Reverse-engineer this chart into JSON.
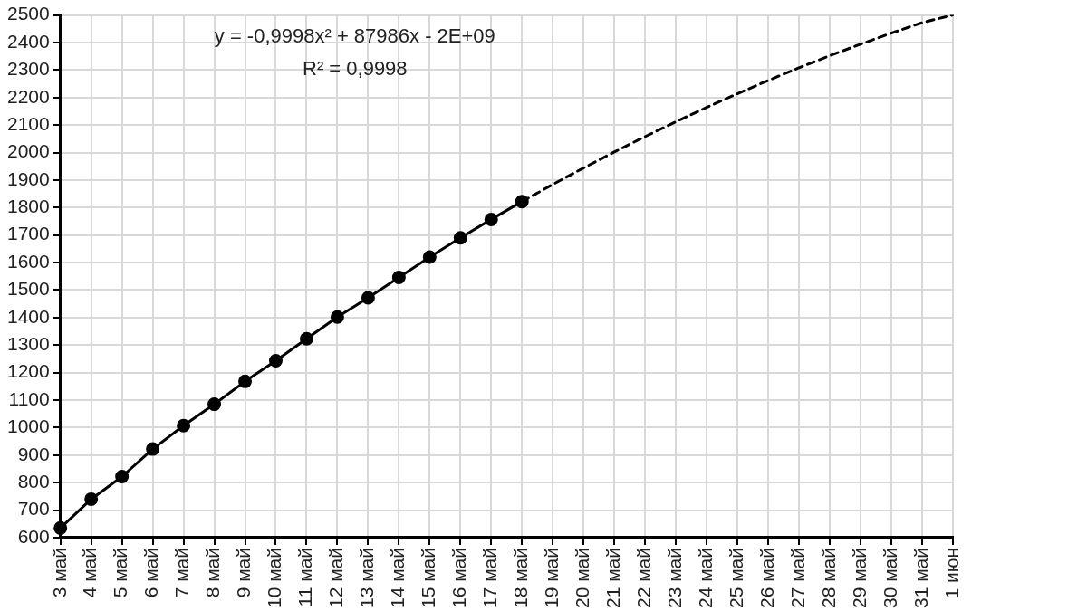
{
  "chart_data": {
    "type": "line",
    "categories": [
      "3 май",
      "4 май",
      "5 май",
      "6 май",
      "7 май",
      "8 май",
      "9 май",
      "10 май",
      "11 май",
      "12 май",
      "13 май",
      "14 май",
      "15 май",
      "16 май",
      "17 май",
      "18 май",
      "19 май",
      "20 май",
      "21 май",
      "22 май",
      "23 май",
      "24 май",
      "25 май",
      "26 май",
      "27 май",
      "28 май",
      "29 май",
      "30 май",
      "31 май",
      "1 июн"
    ],
    "series": [
      {
        "color": "#000000",
        "marker": "circle",
        "line_style": "solid",
        "values": [
          635,
          740,
          822,
          922,
          1007,
          1085,
          1168,
          1243,
          1323,
          1402,
          1472,
          1546,
          1620,
          1690,
          1757,
          1822,
          null,
          null,
          null,
          null,
          null,
          null,
          null,
          null,
          null,
          null,
          null,
          null,
          null,
          null
        ]
      },
      {
        "type": "line",
        "color": "#000000",
        "marker": "none",
        "line_style": "dashed",
        "values": [
          null,
          null,
          null,
          null,
          null,
          null,
          null,
          null,
          null,
          null,
          null,
          null,
          null,
          null,
          null,
          1822,
          1884,
          1944,
          2002,
          2058,
          2112,
          2164,
          2214,
          2262,
          2308,
          2352,
          2394,
          2434,
          2472,
          2500
        ]
      }
    ],
    "ylim": [
      600,
      2500
    ],
    "yticks": [
      600,
      700,
      800,
      900,
      1000,
      1100,
      1200,
      1300,
      1400,
      1500,
      1600,
      1700,
      1800,
      1900,
      2000,
      2100,
      2200,
      2300,
      2400,
      2500
    ],
    "grid": true,
    "legend": false,
    "annotations": [
      "y = -0,9998x² + 87986x - 2E+09",
      "R² = 0,9998"
    ]
  }
}
